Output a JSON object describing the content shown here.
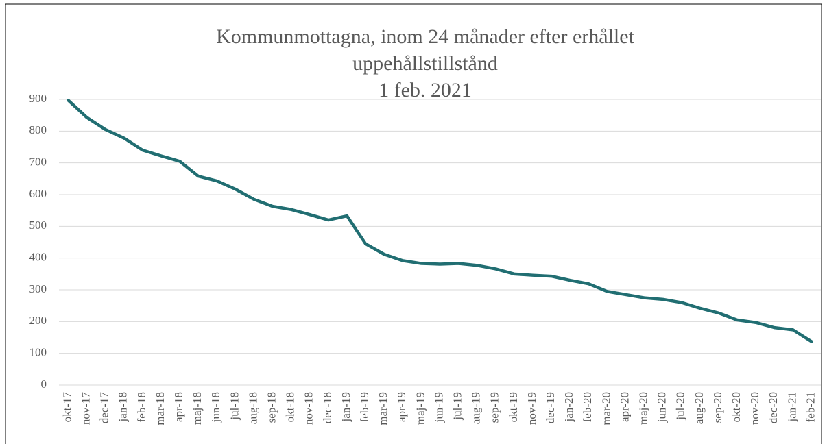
{
  "chart_data": {
    "type": "line",
    "title": [
      "Kommunmottagna, inom 24 månader efter erhållet",
      "uppehållstillstånd",
      "1 feb. 2021"
    ],
    "categories": [
      "okt-17",
      "nov-17",
      "dec-17",
      "jan-18",
      "feb-18",
      "mar-18",
      "apr-18",
      "maj-18",
      "jun-18",
      "jul-18",
      "aug-18",
      "sep-18",
      "okt-18",
      "nov-18",
      "dec-18",
      "jan-19",
      "feb-19",
      "mar-19",
      "apr-19",
      "maj-19",
      "jun-19",
      "jul-19",
      "aug-19",
      "sep-19",
      "okt-19",
      "nov-19",
      "dec-19",
      "jan-20",
      "feb-20",
      "mar-20",
      "apr-20",
      "maj-20",
      "jun-20",
      "jul-20",
      "aug-20",
      "sep-20",
      "okt-20",
      "nov-20",
      "dec-20",
      "jan-21",
      "feb-21"
    ],
    "values": [
      897,
      843,
      805,
      778,
      740,
      722,
      705,
      658,
      643,
      617,
      585,
      563,
      553,
      537,
      520,
      533,
      445,
      412,
      392,
      383,
      381,
      383,
      377,
      366,
      350,
      346,
      343,
      330,
      319,
      295,
      285,
      275,
      270,
      260,
      242,
      227,
      205,
      197,
      181,
      174,
      137
    ],
    "color": "#216e72",
    "ylim": [
      0,
      900
    ],
    "yticks": [
      0,
      100,
      200,
      300,
      400,
      500,
      600,
      700,
      800,
      900
    ],
    "grid": true
  }
}
